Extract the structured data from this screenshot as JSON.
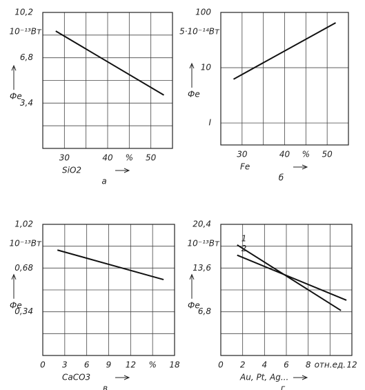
{
  "chart_data": [
    {
      "type": "line",
      "unit": "10⁻¹³Вт",
      "ylabel": "Фе",
      "xlabel": "SiO2",
      "panel": "а",
      "grid": true,
      "xlim": [
        25,
        55
      ],
      "xticks": [
        30,
        40,
        {
          "value": 45,
          "label": "%"
        },
        50
      ],
      "xgrid": [
        35
      ],
      "ylim": [
        0,
        10.2
      ],
      "yticks": [
        {
          "value": 3.4,
          "label": "3,4"
        },
        {
          "value": 6.8,
          "label": "6,8"
        },
        {
          "value": 10.2,
          "label": "10,2"
        }
      ],
      "ygrid": [
        1.7,
        5.1,
        8.5
      ],
      "series": [
        {
          "color": "#111111",
          "x": [
            28,
            53
          ],
          "values": [
            8.8,
            4.0
          ]
        }
      ]
    },
    {
      "type": "line",
      "unit": "5·10⁻¹⁴Вт",
      "ylabel": "Фе",
      "xlabel": "Fe",
      "panel": "б",
      "grid": true,
      "log_y": true,
      "xlim": [
        25,
        55
      ],
      "xticks": [
        30,
        40,
        {
          "value": 45,
          "label": "%"
        },
        50
      ],
      "xgrid": [
        35
      ],
      "ylim": [
        0.4,
        100
      ],
      "yticks": [
        {
          "value": 1,
          "label": "I"
        },
        10,
        100
      ],
      "series": [
        {
          "color": "#111111",
          "x": [
            28,
            52
          ],
          "values": [
            6.2,
            65
          ]
        }
      ]
    },
    {
      "type": "line",
      "unit": "10⁻¹³Вт",
      "ylabel": "Фе",
      "xlabel": "CaCO3",
      "panel": "в",
      "grid": true,
      "xlim": [
        0,
        18
      ],
      "xticks": [
        0,
        3,
        6,
        9,
        12,
        {
          "value": 15,
          "label": "%"
        },
        18
      ],
      "ylim": [
        0,
        1.02
      ],
      "yticks": [
        {
          "value": 0.34,
          "label": "0,34"
        },
        {
          "value": 0.68,
          "label": "0,68"
        },
        {
          "value": 1.02,
          "label": "1,02"
        }
      ],
      "ygrid": [
        0.17,
        0.51,
        0.85
      ],
      "series": [
        {
          "color": "#111111",
          "x": [
            2,
            16.5
          ],
          "values": [
            0.82,
            0.59
          ]
        }
      ]
    },
    {
      "type": "line",
      "unit": "10⁻¹³Вт",
      "ylabel": "Фе",
      "xlabel": "Au, Pt, Ag...",
      "panel": "г",
      "grid": true,
      "xlim": [
        0,
        12
      ],
      "xticks": [
        0,
        2,
        4,
        6,
        8,
        {
          "value": 10,
          "label": "отн.ед."
        },
        12
      ],
      "ylim": [
        0,
        20.4
      ],
      "yticks": [
        {
          "value": 6.8,
          "label": "6,8"
        },
        {
          "value": 13.6,
          "label": "13,6"
        },
        {
          "value": 20.4,
          "label": "20,4"
        }
      ],
      "ygrid": [
        3.4,
        10.2,
        17
      ],
      "series": [
        {
          "name": "1",
          "color": "#111111",
          "x": [
            1.5,
            11
          ],
          "values": [
            17.2,
            7.0
          ]
        },
        {
          "name": "2",
          "color": "#111111",
          "x": [
            1.5,
            11.5
          ],
          "values": [
            15.6,
            8.6
          ]
        }
      ]
    }
  ]
}
